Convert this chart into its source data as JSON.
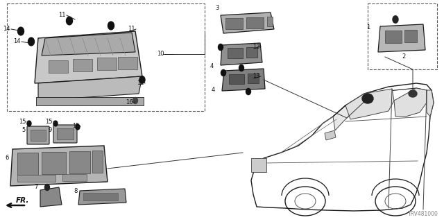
{
  "diagram_code": "TRV481000",
  "bg_color": "#ffffff",
  "lc": "#1a1a1a",
  "fig_width": 6.4,
  "fig_height": 3.2,
  "dpi": 100
}
